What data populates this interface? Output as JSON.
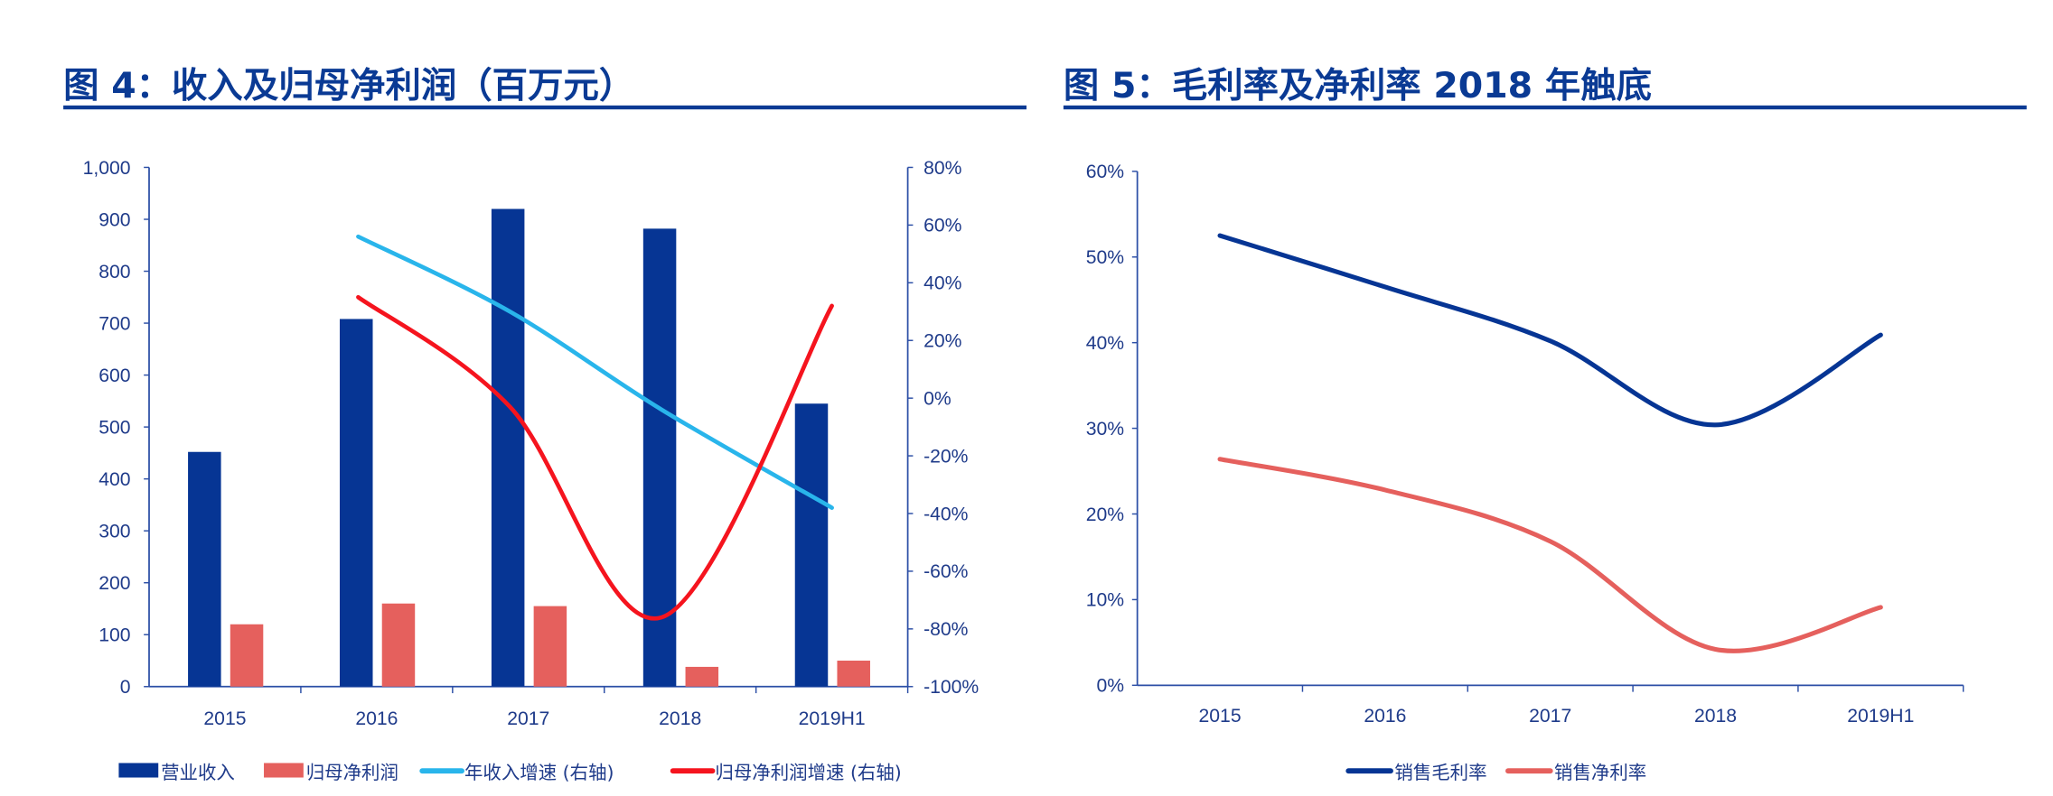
{
  "chart_data": [
    {
      "type": "bar",
      "title": "图 4：收入及归母净利润（百万元）",
      "categories": [
        "2015",
        "2016",
        "2017",
        "2018",
        "2019H1"
      ],
      "y_left": {
        "range": [
          0,
          1000
        ],
        "ticks": [
          "0",
          "100",
          "200",
          "300",
          "400",
          "500",
          "600",
          "700",
          "800",
          "900",
          "1,000"
        ]
      },
      "y_right": {
        "range": [
          -100,
          80
        ],
        "ticks": [
          "-100%",
          "-80%",
          "-60%",
          "-40%",
          "-20%",
          "0%",
          "20%",
          "40%",
          "60%",
          "80%"
        ]
      },
      "series": [
        {
          "name": "营业收入",
          "kind": "bar",
          "axis": "left",
          "color": "#063594",
          "values": [
            452,
            708,
            920,
            882,
            545
          ]
        },
        {
          "name": "归母净利润",
          "kind": "bar",
          "axis": "left",
          "color": "#e5605d",
          "values": [
            120,
            160,
            155,
            38,
            50
          ]
        },
        {
          "name": "年收入增速 (右轴)",
          "kind": "line",
          "axis": "right",
          "color": "#29b5eb",
          "values": [
            null,
            56,
            30,
            -4,
            -38
          ]
        },
        {
          "name": "归母净利润增速 (右轴)",
          "kind": "line",
          "axis": "right",
          "color": "#f5141e",
          "values": [
            null,
            35,
            -3,
            -76,
            32
          ]
        }
      ],
      "grid": false,
      "legend": "bottom"
    },
    {
      "type": "line",
      "title": "图 5：毛利率及净利率 2018 年触底",
      "categories": [
        "2015",
        "2016",
        "2017",
        "2018",
        "2019H1"
      ],
      "y": {
        "range": [
          0,
          60
        ],
        "ticks": [
          "0%",
          "10%",
          "20%",
          "30%",
          "40%",
          "50%",
          "60%"
        ]
      },
      "series": [
        {
          "name": "销售毛利率",
          "color": "#063594",
          "values": [
            52.5,
            46.5,
            40.2,
            30.4,
            40.9
          ]
        },
        {
          "name": "销售净利率",
          "color": "#e5605d",
          "values": [
            26.4,
            22.8,
            16.8,
            4.2,
            9.1
          ]
        }
      ],
      "grid": false,
      "legend": "bottom"
    }
  ]
}
